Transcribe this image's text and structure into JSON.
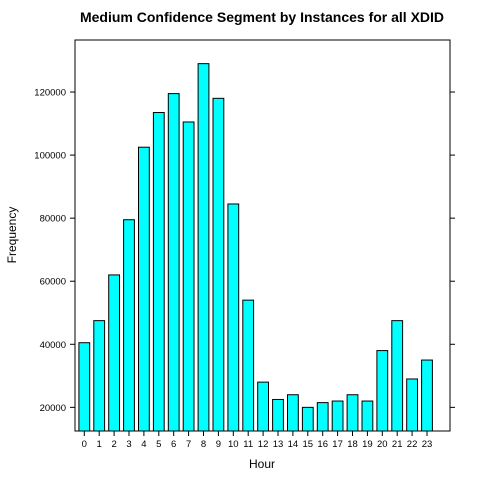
{
  "chart_data": {
    "type": "bar",
    "title": "Medium Confidence Segment by Instances for all XDID",
    "xlabel": "Hour",
    "ylabel": "Frequency",
    "categories": [
      "0",
      "1",
      "2",
      "3",
      "4",
      "5",
      "6",
      "7",
      "8",
      "9",
      "10",
      "11",
      "12",
      "13",
      "14",
      "15",
      "16",
      "17",
      "18",
      "19",
      "20",
      "21",
      "22",
      "23"
    ],
    "values": [
      40500,
      47500,
      62000,
      79500,
      102500,
      113500,
      119500,
      110500,
      129000,
      118000,
      84500,
      54000,
      28000,
      22500,
      24000,
      20000,
      21500,
      22000,
      24000,
      22000,
      38000,
      47500,
      29000,
      35000
    ],
    "ylim": [
      12500,
      136500
    ],
    "yticks": [
      20000,
      40000,
      60000,
      80000,
      100000,
      120000
    ],
    "ytick_labels": [
      "20000",
      "40000",
      "60000",
      "80000",
      "100000",
      "120000"
    ],
    "bar_color": "#00ffff",
    "bar_edge_color": "#000000",
    "grid": false,
    "legend": "none"
  }
}
